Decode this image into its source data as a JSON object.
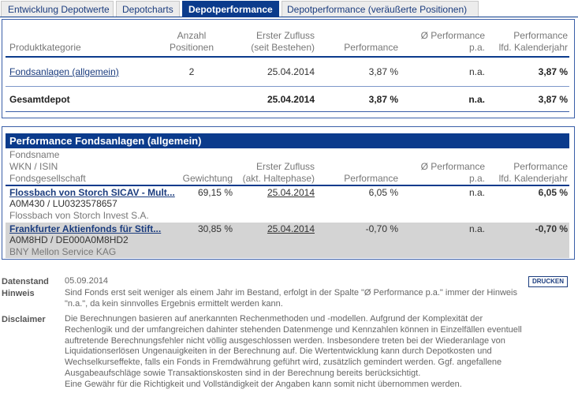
{
  "tabs": [
    "Entwicklung Depotwerte",
    "Depotcharts",
    "Depotperformance",
    "Depotperformance (veräußerte Positionen)"
  ],
  "summary": {
    "headers": [
      [
        "Produktkategorie"
      ],
      [
        "Anzahl",
        "Positionen"
      ],
      [
        "Erster Zufluss",
        "(seit Bestehen)"
      ],
      [
        "Performance"
      ],
      [
        "Ø Performance",
        "p.a."
      ],
      [
        "Performance",
        "lfd. Kalenderjahr"
      ]
    ],
    "rows": [
      {
        "label": "Fondsanlagen (allgemein)",
        "count": "2",
        "first_inflow": "25.04.2014",
        "performance": "3,87 %",
        "performance_pa": "n.a.",
        "performance_ytd": "3,87 %"
      },
      {
        "label": "Gesamtdepot",
        "first_inflow": "25.04.2014",
        "performance": "3,87 %",
        "performance_pa": "n.a.",
        "performance_ytd": "3,87 %"
      }
    ]
  },
  "funds": {
    "title": "Performance Fondsanlagen (allgemein)",
    "headers": [
      [
        "Fondsname",
        "WKN / ISIN",
        "Fondsgesellschaft"
      ],
      [
        "Gewichtung"
      ],
      [
        "Erster Zufluss",
        "(akt. Haltephase)"
      ],
      [
        "Performance"
      ],
      [
        "Ø Performance",
        "p.a."
      ],
      [
        "Performance",
        "lfd. Kalenderjahr"
      ]
    ],
    "rows": [
      {
        "name": "Flossbach von Storch SICAV - Mult...",
        "wkn_isin": "A0M430 / LU0323578657",
        "company": "Flossbach von Storch Invest S.A.",
        "weight": "69,15 %",
        "first_inflow": "25.04.2014",
        "performance": "6,05 %",
        "performance_pa": "n.a.",
        "performance_ytd": "6,05 %"
      },
      {
        "name": "Frankfurter Aktienfonds für Stift...",
        "wkn_isin": "A0M8HD / DE000A0M8HD2",
        "company": "BNY Mellon Service KAG",
        "weight": "30,85 %",
        "first_inflow": "25.04.2014",
        "performance": "-0,70 %",
        "performance_pa": "n.a.",
        "performance_ytd": "-0,70 %"
      }
    ]
  },
  "footer": {
    "data_date_label": "Datenstand",
    "data_date": "05.09.2014",
    "print_button": "DRUCKEN",
    "note_label": "Hinweis",
    "note": [
      "Sind Fonds erst seit weniger als einem Jahr im Bestand, erfolgt in der Spalte \"Ø Performance p.a.\" immer der Hinweis",
      "\"n.a.\", da kein sinnvolles Ergebnis ermittelt werden kann."
    ],
    "disclaimer_label": "Disclaimer",
    "disclaimer": [
      "Die Berechnungen basieren auf anerkannten Rechenmethoden und -modellen. Aufgrund der Komplexität der",
      "Rechenlogik und der umfangreichen dahinter stehenden Datenmenge und Kennzahlen können in Einzelfällen eventuell",
      "auftretende Berechnungsfehler nicht völlig ausgeschlossen werden. Insbesondere treten bei der Wiederanlage von",
      "Liquidationserlösen Ungenauigkeiten in der Berechnung auf. Die Wertentwicklung kann durch Depotkosten und",
      "Wechselkurseffekte, falls ein Fonds in Fremdwährung geführt wird, zusätzlich gemindert werden. Ggf. angefallene",
      "Ausgabeaufschläge sowie Transaktionskosten sind in der Berechnung bereits berücksichtigt.",
      "Eine Gewähr für die Richtigkeit und Vollständigkeit der Angaben kann somit nicht übernommen werden."
    ]
  }
}
